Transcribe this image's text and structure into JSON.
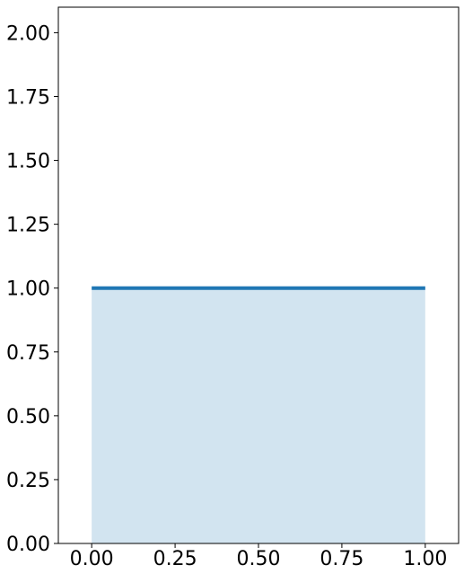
{
  "chart_data": {
    "type": "area",
    "x": [
      0.0,
      1.0
    ],
    "series": [
      {
        "values": [
          1.0,
          1.0
        ],
        "line_color": "#1f77b4",
        "fill_color": "#1f77b4",
        "fill_opacity": 0.2
      }
    ],
    "xlim": [
      -0.1,
      1.1
    ],
    "ylim": [
      0.0,
      2.1
    ],
    "xticks": [
      0.0,
      0.25,
      0.5,
      0.75,
      1.0
    ],
    "xtick_labels": [
      "0.00",
      "0.25",
      "0.50",
      "0.75",
      "1.00"
    ],
    "yticks": [
      0.0,
      0.25,
      0.5,
      0.75,
      1.0,
      1.25,
      1.5,
      1.75,
      2.0
    ],
    "ytick_labels": [
      "0.00",
      "0.25",
      "0.50",
      "0.75",
      "1.00",
      "1.25",
      "1.50",
      "1.75",
      "2.00"
    ],
    "grid": false,
    "title": "",
    "xlabel": "",
    "ylabel": ""
  }
}
